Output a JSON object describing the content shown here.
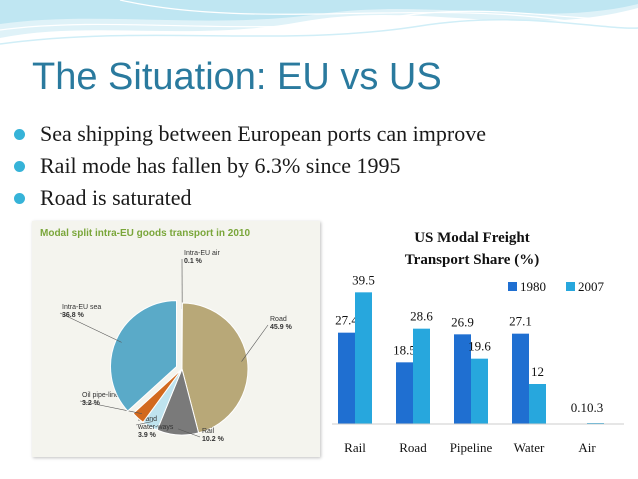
{
  "slide": {
    "title": "The Situation: EU vs US",
    "bullets": [
      "Sea shipping between European ports can improve",
      "Rail mode has fallen by 6.3% since 1995",
      "Road is saturated"
    ]
  },
  "chart_data": [
    {
      "type": "pie",
      "title": "Modal split intra-EU goods transport in 2010",
      "slices": [
        {
          "label": "Intra-EU air",
          "value": 0.1,
          "value_label": "0.1 %",
          "color": "#e6e6e6"
        },
        {
          "label": "Road",
          "value": 45.9,
          "value_label": "45.9 %",
          "color": "#b8a878"
        },
        {
          "label": "Rail",
          "value": 10.2,
          "value_label": "10.2 %",
          "color": "#7a7a7a"
        },
        {
          "label": "Inland water-ways",
          "value": 3.9,
          "value_label": "3.9 %",
          "color": "#bfe3ee"
        },
        {
          "label": "Oil pipe-lines",
          "value": 3.2,
          "value_label": "3.2 %",
          "color": "#d2691e"
        },
        {
          "label": "Intra-EU sea",
          "value": 36.8,
          "value_label": "36.8 %",
          "color": "#5aaac8"
        }
      ]
    },
    {
      "type": "bar",
      "title": "US Modal Freight Transport Share (%)",
      "title_lines": [
        "US Modal Freight",
        "Transport Share (%)"
      ],
      "categories": [
        "Rail",
        "Road",
        "Pipeline",
        "Water",
        "Air"
      ],
      "series": [
        {
          "name": "1980",
          "color": "#1f6fd1",
          "values": [
            27.4,
            18.5,
            26.9,
            27.1,
            0.1
          ]
        },
        {
          "name": "2007",
          "color": "#27a7dd",
          "values": [
            39.5,
            28.6,
            19.6,
            12,
            0.3
          ]
        }
      ],
      "air_label": "0.10.3",
      "ylim": [
        0,
        45
      ],
      "grid": false,
      "legend": "top-right"
    }
  ]
}
